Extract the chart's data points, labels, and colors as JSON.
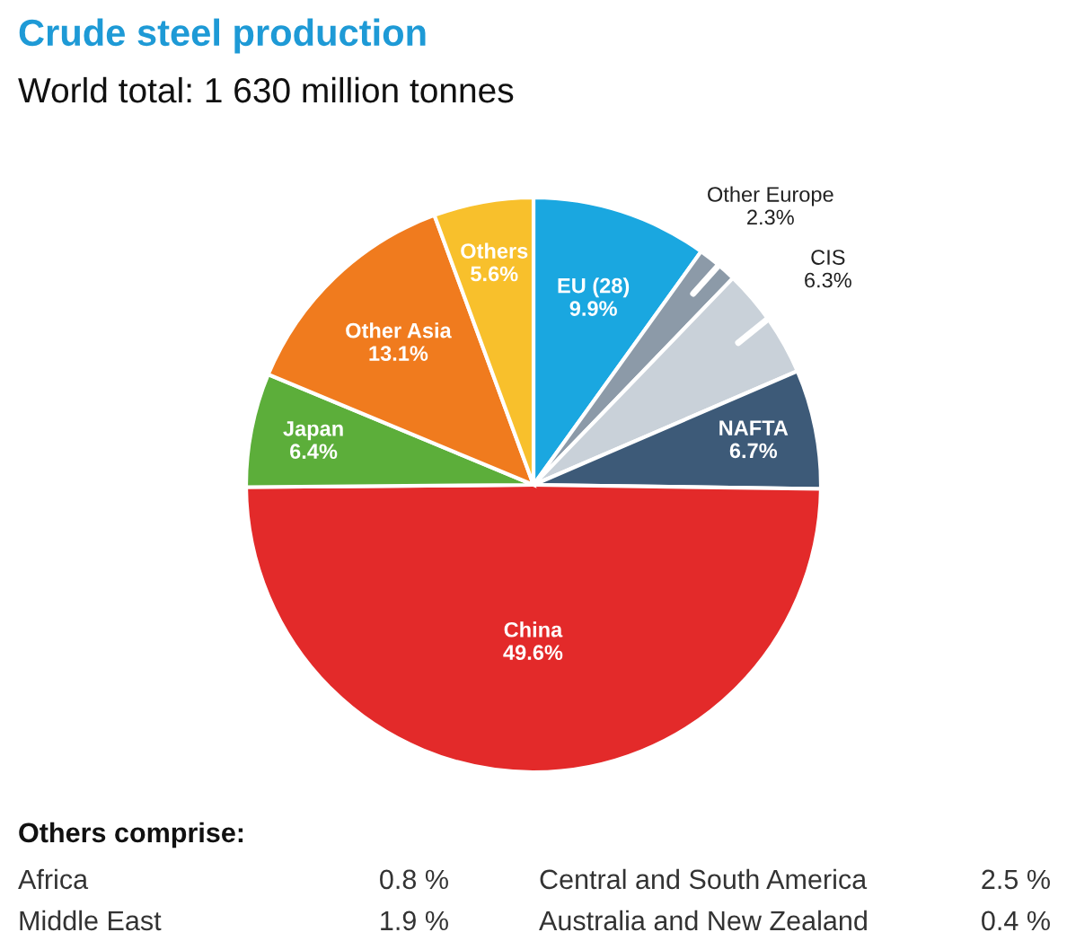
{
  "chart_data": {
    "type": "pie",
    "title": "Crude steel production",
    "subtitle": "World total: 1 630 million tonnes",
    "categories": [
      "EU (28)",
      "Other Europe",
      "CIS",
      "NAFTA",
      "China",
      "Japan",
      "Other Asia",
      "Others"
    ],
    "values": [
      9.9,
      2.3,
      6.3,
      6.7,
      49.6,
      6.4,
      13.1,
      5.6
    ],
    "colors": [
      "#1aa7e0",
      "#8c9aa8",
      "#c9d1d9",
      "#3d5a78",
      "#e32a2a",
      "#5cae3a",
      "#f07b1e",
      "#f8c02c"
    ],
    "value_labels": [
      "9.9%",
      "2.3%",
      "6.3%",
      "6.7%",
      "49.6%",
      "6.4%",
      "13.1%",
      "5.6%"
    ],
    "legend": false,
    "annotations": [
      "Others comprise:",
      "Africa",
      "0.8 %",
      "Central and South America",
      "2.5 %",
      "Middle East",
      "1.9 %",
      "Australia and New Zealand",
      "0.4 %"
    ]
  }
}
